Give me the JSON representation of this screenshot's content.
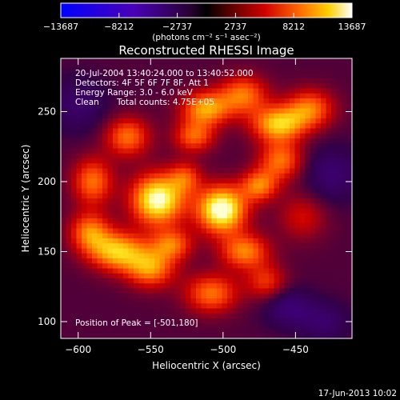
{
  "chart_data": {
    "type": "heatmap",
    "title": "Reconstructed RHESSI Image",
    "xlabel": "Heliocentric X (arcsec)",
    "ylabel": "Heliocentric Y (arcsec)",
    "xlim": [
      -612,
      -411
    ],
    "ylim": [
      88,
      288
    ],
    "x_ticks": [
      -600,
      -550,
      -500,
      -450
    ],
    "x_tick_labels": [
      "−600",
      "−550",
      "−500",
      "−450"
    ],
    "y_ticks": [
      100,
      150,
      200,
      250
    ],
    "y_tick_labels": [
      "100",
      "150",
      "200",
      "250"
    ],
    "colorbar": {
      "min": -13687,
      "max": 13687,
      "ticks": [
        -13687,
        -8212,
        -2737,
        2737,
        8212,
        13687
      ],
      "tick_labels": [
        "−13687",
        "−8212",
        "−2737",
        "2737",
        "8212",
        "13687"
      ],
      "units": "(photons cm⁻² s⁻¹ asec⁻²)"
    },
    "annotations": {
      "time_range": "20-Jul-2004 13:40:24.000 to 13:40:52.000",
      "detectors": "Detectors: 4F 5F 6F 7F 8F, Att 1",
      "energy": "Energy Range: 3.0 - 6.0 keV",
      "clean": "Clean",
      "counts": "Total counts: 4.75E+05",
      "peak": "Position of Peak = [-501,180]"
    },
    "peak": {
      "x": -501,
      "y": 180
    },
    "sources": [
      {
        "x": -501,
        "y": 180,
        "sx": 12,
        "sy": 12,
        "amp": 1.0
      },
      {
        "x": -545,
        "y": 187,
        "sx": 13,
        "sy": 13,
        "amp": 0.95
      },
      {
        "x": -526,
        "y": 203,
        "sx": 8,
        "sy": 8,
        "amp": 0.4
      },
      {
        "x": -475,
        "y": 197,
        "sx": 9,
        "sy": 8,
        "amp": 0.55
      },
      {
        "x": -460,
        "y": 215,
        "sx": 11,
        "sy": 10,
        "amp": 0.55
      },
      {
        "x": -462,
        "y": 241,
        "sx": 13,
        "sy": 9,
        "amp": 0.72
      },
      {
        "x": -440,
        "y": 252,
        "sx": 12,
        "sy": 10,
        "amp": 0.55
      },
      {
        "x": -512,
        "y": 252,
        "sx": 12,
        "sy": 9,
        "amp": 0.65
      },
      {
        "x": -486,
        "y": 262,
        "sx": 12,
        "sy": 10,
        "amp": 0.55
      },
      {
        "x": -566,
        "y": 232,
        "sx": 11,
        "sy": 10,
        "amp": 0.55
      },
      {
        "x": -520,
        "y": 232,
        "sx": 10,
        "sy": 8,
        "amp": 0.5
      },
      {
        "x": -573,
        "y": 150,
        "sx": 14,
        "sy": 10,
        "amp": 0.72
      },
      {
        "x": -550,
        "y": 138,
        "sx": 12,
        "sy": 10,
        "amp": 0.6
      },
      {
        "x": -592,
        "y": 164,
        "sx": 10,
        "sy": 10,
        "amp": 0.55
      },
      {
        "x": -590,
        "y": 200,
        "sx": 10,
        "sy": 12,
        "amp": 0.55
      },
      {
        "x": -535,
        "y": 155,
        "sx": 10,
        "sy": 8,
        "amp": 0.5
      },
      {
        "x": -485,
        "y": 150,
        "sx": 12,
        "sy": 9,
        "amp": 0.58
      },
      {
        "x": -508,
        "y": 120,
        "sx": 13,
        "sy": 10,
        "amp": 0.55
      },
      {
        "x": -470,
        "y": 128,
        "sx": 10,
        "sy": 9,
        "amp": 0.4
      },
      {
        "x": -445,
        "y": 175,
        "sx": 12,
        "sy": 12,
        "amp": 0.3
      },
      {
        "x": -455,
        "y": 110,
        "sx": 12,
        "sy": 10,
        "amp": -0.3
      },
      {
        "x": -425,
        "y": 205,
        "sx": 14,
        "sy": 14,
        "amp": -0.28
      },
      {
        "x": -600,
        "y": 255,
        "sx": 14,
        "sy": 14,
        "amp": -0.25
      },
      {
        "x": -430,
        "y": 100,
        "sx": 12,
        "sy": 10,
        "amp": -0.25
      }
    ]
  },
  "footer": {
    "date": "17-Jun-2013 10:02"
  }
}
